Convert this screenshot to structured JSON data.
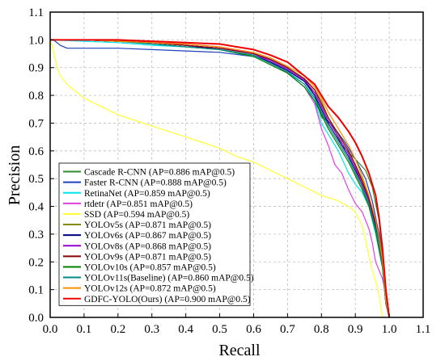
{
  "chart_data": {
    "type": "line",
    "xlabel": "Recall",
    "ylabel": "Precision",
    "xlim": [
      0.0,
      1.1
    ],
    "ylim": [
      0.0,
      1.1
    ],
    "xticks": [
      "0.0",
      "0.1",
      "0.2",
      "0.3",
      "0.4",
      "0.5",
      "0.6",
      "0.7",
      "0.8",
      "0.9",
      "1.0",
      "1.1"
    ],
    "yticks": [
      "0.0",
      "0.1",
      "0.2",
      "0.3",
      "0.4",
      "0.5",
      "0.6",
      "0.7",
      "0.8",
      "0.9",
      "1.0",
      "1.1"
    ],
    "grid": true,
    "legend_position": "bottom-left",
    "series": [
      {
        "name": "Cascade R-CNN (AP=0.886 mAP@0.5)",
        "color": "#2e8b2e",
        "x": [
          0,
          0.1,
          0.2,
          0.3,
          0.4,
          0.5,
          0.6,
          0.65,
          0.7,
          0.75,
          0.78,
          0.8,
          0.83,
          0.86,
          0.9,
          0.93,
          0.95,
          0.97,
          0.98,
          0.99,
          1.0
        ],
        "y": [
          1.0,
          1.0,
          0.995,
          0.99,
          0.98,
          0.97,
          0.95,
          0.93,
          0.9,
          0.86,
          0.8,
          0.72,
          0.7,
          0.62,
          0.57,
          0.53,
          0.47,
          0.35,
          0.2,
          0.06,
          0.0
        ]
      },
      {
        "name": "Faster R-CNN (AP=0.888 mAP@0.5)",
        "color": "#1f3fbf",
        "x": [
          0,
          0.01,
          0.02,
          0.03,
          0.05,
          0.1,
          0.2,
          0.3,
          0.4,
          0.5,
          0.6,
          0.65,
          0.7,
          0.75,
          0.78,
          0.8,
          0.84,
          0.87,
          0.9,
          0.93,
          0.95,
          0.97,
          0.98,
          0.99,
          1.0
        ],
        "y": [
          1.0,
          1.0,
          0.99,
          0.98,
          0.97,
          0.97,
          0.97,
          0.965,
          0.96,
          0.955,
          0.94,
          0.92,
          0.89,
          0.85,
          0.8,
          0.73,
          0.68,
          0.63,
          0.57,
          0.5,
          0.42,
          0.3,
          0.18,
          0.05,
          0.0
        ]
      },
      {
        "name": "RetinaNet (AP=0.859 mAP@0.5)",
        "color": "#00e5ee",
        "x": [
          0,
          0.1,
          0.2,
          0.3,
          0.4,
          0.5,
          0.6,
          0.65,
          0.7,
          0.75,
          0.78,
          0.8,
          0.82,
          0.85,
          0.88,
          0.9,
          0.92,
          0.94,
          0.96,
          0.98,
          0.99,
          1.0
        ],
        "y": [
          1.0,
          0.995,
          0.99,
          0.98,
          0.975,
          0.965,
          0.94,
          0.92,
          0.88,
          0.84,
          0.78,
          0.7,
          0.66,
          0.6,
          0.52,
          0.48,
          0.45,
          0.4,
          0.3,
          0.18,
          0.05,
          0.0
        ]
      },
      {
        "name": "rtdetr (AP=0.851 mAP@0.5)",
        "color": "#e040e0",
        "x": [
          0,
          0.1,
          0.2,
          0.3,
          0.4,
          0.5,
          0.6,
          0.65,
          0.7,
          0.75,
          0.78,
          0.8,
          0.82,
          0.84,
          0.86,
          0.88,
          0.9,
          0.92,
          0.94,
          0.95,
          0.96,
          0.98,
          0.99,
          1.0
        ],
        "y": [
          1.0,
          1.0,
          0.995,
          0.99,
          0.985,
          0.975,
          0.95,
          0.92,
          0.88,
          0.83,
          0.77,
          0.68,
          0.62,
          0.55,
          0.52,
          0.46,
          0.41,
          0.38,
          0.32,
          0.27,
          0.2,
          0.14,
          0.08,
          0.0
        ]
      },
      {
        "name": "SSD (AP=0.594 mAP@0.5)",
        "color": "#ffff33",
        "x": [
          0,
          0.01,
          0.02,
          0.03,
          0.05,
          0.08,
          0.1,
          0.15,
          0.2,
          0.25,
          0.3,
          0.35,
          0.4,
          0.45,
          0.5,
          0.55,
          0.6,
          0.65,
          0.7,
          0.75,
          0.8,
          0.85,
          0.88,
          0.9,
          0.92,
          0.93,
          0.94,
          0.95,
          0.96,
          0.97,
          0.98
        ],
        "y": [
          1.0,
          0.96,
          0.9,
          0.87,
          0.84,
          0.81,
          0.79,
          0.76,
          0.73,
          0.71,
          0.69,
          0.67,
          0.65,
          0.63,
          0.61,
          0.58,
          0.56,
          0.53,
          0.5,
          0.47,
          0.44,
          0.42,
          0.4,
          0.38,
          0.33,
          0.28,
          0.22,
          0.17,
          0.13,
          0.08,
          0.0
        ]
      },
      {
        "name": "YOLOv5s (AP=0.871 mAP@0.5)",
        "color": "#8a8a00",
        "x": [
          0,
          0.1,
          0.2,
          0.3,
          0.4,
          0.5,
          0.6,
          0.65,
          0.7,
          0.75,
          0.78,
          0.8,
          0.82,
          0.85,
          0.88,
          0.9,
          0.92,
          0.94,
          0.96,
          0.98,
          0.99,
          1.0
        ],
        "y": [
          1.0,
          1.0,
          0.995,
          0.99,
          0.98,
          0.97,
          0.95,
          0.93,
          0.9,
          0.86,
          0.82,
          0.78,
          0.72,
          0.66,
          0.6,
          0.55,
          0.5,
          0.43,
          0.33,
          0.2,
          0.06,
          0.0
        ]
      },
      {
        "name": "YOLOv6s (AP=0.867 mAP@0.5)",
        "color": "#000080",
        "x": [
          0,
          0.1,
          0.2,
          0.3,
          0.4,
          0.5,
          0.6,
          0.65,
          0.7,
          0.75,
          0.78,
          0.8,
          0.82,
          0.85,
          0.88,
          0.9,
          0.92,
          0.94,
          0.96,
          0.98,
          0.99,
          1.0
        ],
        "y": [
          1.0,
          1.0,
          0.995,
          0.99,
          0.98,
          0.965,
          0.945,
          0.92,
          0.89,
          0.85,
          0.8,
          0.75,
          0.7,
          0.64,
          0.58,
          0.53,
          0.48,
          0.42,
          0.33,
          0.2,
          0.06,
          0.0
        ]
      },
      {
        "name": "YOLOv8s (AP=0.868 mAP@0.5)",
        "color": "#9400d3",
        "x": [
          0,
          0.1,
          0.2,
          0.3,
          0.4,
          0.5,
          0.6,
          0.65,
          0.7,
          0.75,
          0.78,
          0.8,
          0.82,
          0.85,
          0.88,
          0.9,
          0.92,
          0.94,
          0.96,
          0.98,
          0.99,
          1.0
        ],
        "y": [
          1.0,
          1.0,
          0.995,
          0.99,
          0.98,
          0.97,
          0.95,
          0.925,
          0.895,
          0.855,
          0.81,
          0.76,
          0.71,
          0.65,
          0.59,
          0.54,
          0.48,
          0.42,
          0.32,
          0.2,
          0.05,
          0.0
        ]
      },
      {
        "name": "YOLOv9s (AP=0.871 mAP@0.5)",
        "color": "#8b0000",
        "x": [
          0,
          0.1,
          0.2,
          0.3,
          0.4,
          0.5,
          0.6,
          0.65,
          0.7,
          0.75,
          0.78,
          0.8,
          0.82,
          0.85,
          0.88,
          0.9,
          0.92,
          0.94,
          0.96,
          0.98,
          0.99,
          1.0
        ],
        "y": [
          1.0,
          1.0,
          0.995,
          0.99,
          0.98,
          0.97,
          0.95,
          0.93,
          0.9,
          0.86,
          0.82,
          0.77,
          0.72,
          0.66,
          0.6,
          0.55,
          0.49,
          0.43,
          0.34,
          0.2,
          0.06,
          0.0
        ]
      },
      {
        "name": "YOLOv10s (AP=0.857 mAP@0.5)",
        "color": "#008000",
        "x": [
          0,
          0.1,
          0.2,
          0.3,
          0.4,
          0.5,
          0.6,
          0.65,
          0.7,
          0.75,
          0.78,
          0.8,
          0.82,
          0.85,
          0.88,
          0.9,
          0.92,
          0.94,
          0.96,
          0.98,
          0.99,
          1.0
        ],
        "y": [
          1.0,
          1.0,
          0.995,
          0.985,
          0.975,
          0.965,
          0.94,
          0.91,
          0.88,
          0.83,
          0.78,
          0.73,
          0.68,
          0.62,
          0.56,
          0.51,
          0.46,
          0.4,
          0.31,
          0.18,
          0.05,
          0.0
        ]
      },
      {
        "name": "YOLOv11s(Baseline) (AP=0.860 mAP@0.5)",
        "color": "#008b8b",
        "x": [
          0,
          0.1,
          0.2,
          0.3,
          0.4,
          0.5,
          0.6,
          0.65,
          0.7,
          0.75,
          0.78,
          0.8,
          0.82,
          0.85,
          0.88,
          0.9,
          0.92,
          0.94,
          0.96,
          0.98,
          0.99,
          1.0
        ],
        "y": [
          1.0,
          1.0,
          0.995,
          0.985,
          0.975,
          0.965,
          0.945,
          0.915,
          0.885,
          0.84,
          0.79,
          0.74,
          0.69,
          0.63,
          0.57,
          0.52,
          0.47,
          0.41,
          0.32,
          0.19,
          0.05,
          0.0
        ]
      },
      {
        "name": "YOLOv12s (AP=0.872 mAP@0.5)",
        "color": "#ff8c00",
        "x": [
          0,
          0.1,
          0.2,
          0.3,
          0.4,
          0.5,
          0.6,
          0.65,
          0.7,
          0.75,
          0.78,
          0.8,
          0.82,
          0.85,
          0.88,
          0.9,
          0.92,
          0.94,
          0.96,
          0.98,
          0.99,
          1.0
        ],
        "y": [
          1.0,
          1.0,
          0.995,
          0.99,
          0.985,
          0.975,
          0.955,
          0.935,
          0.905,
          0.87,
          0.83,
          0.79,
          0.74,
          0.68,
          0.62,
          0.57,
          0.51,
          0.44,
          0.35,
          0.21,
          0.06,
          0.0
        ]
      },
      {
        "name": "GDFC-YOLO(Ours) (AP=0.900 mAP@0.5)",
        "color": "#ee0000",
        "x": [
          0,
          0.1,
          0.2,
          0.3,
          0.4,
          0.5,
          0.55,
          0.6,
          0.65,
          0.7,
          0.72,
          0.75,
          0.78,
          0.8,
          0.82,
          0.85,
          0.88,
          0.9,
          0.92,
          0.94,
          0.96,
          0.97,
          0.98,
          0.99,
          1.0
        ],
        "y": [
          1.0,
          1.0,
          1.0,
          0.995,
          0.99,
          0.985,
          0.975,
          0.965,
          0.945,
          0.92,
          0.9,
          0.87,
          0.84,
          0.8,
          0.76,
          0.72,
          0.67,
          0.63,
          0.58,
          0.52,
          0.44,
          0.36,
          0.25,
          0.1,
          0.0
        ]
      }
    ]
  }
}
